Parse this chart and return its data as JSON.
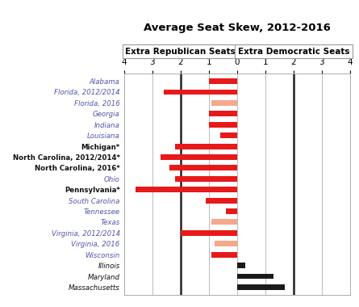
{
  "title": "Average Seat Skew, 2012-2016",
  "header_left": "Extra Republican Seats",
  "header_right": "Extra Democratic Seats",
  "states": [
    "Alabama",
    "Florida, 2012/2014",
    "Florida, 2016",
    "Georgia",
    "Indiana",
    "Louisiana",
    "Michigan*",
    "North Carolina, 2012/2014*",
    "North Carolina, 2016*",
    "Ohio",
    "Pennsylvania*",
    "South Carolina",
    "Tennessee",
    "Texas",
    "Virginia, 2012/2014",
    "Virginia, 2016",
    "Wisconsin",
    "Illinois",
    "Maryland",
    "Massachusetts"
  ],
  "values": [
    -1.0,
    -2.6,
    -0.9,
    -1.0,
    -1.0,
    -0.6,
    -2.2,
    -2.7,
    -2.4,
    -2.2,
    -3.6,
    -1.1,
    -0.4,
    -0.9,
    -2.0,
    -0.8,
    -0.9,
    0.3,
    1.3,
    1.7
  ],
  "bold_states": [
    "Michigan*",
    "North Carolina, 2012/2014*",
    "North Carolina, 2016*",
    "Pennsylvania*"
  ],
  "colors": {
    "red_solid": "#e8191a",
    "red_light": "#f4a98a",
    "black_solid": "#1a1a1a"
  },
  "color_map": {
    "Alabama": "red_solid",
    "Florida, 2012/2014": "red_solid",
    "Florida, 2016": "red_light",
    "Georgia": "red_solid",
    "Indiana": "red_solid",
    "Louisiana": "red_solid",
    "Michigan*": "red_solid",
    "North Carolina, 2012/2014*": "red_solid",
    "North Carolina, 2016*": "red_solid",
    "Ohio": "red_solid",
    "Pennsylvania*": "red_solid",
    "South Carolina": "red_solid",
    "Tennessee": "red_solid",
    "Texas": "red_light",
    "Virginia, 2012/2014": "red_solid",
    "Virginia, 2016": "red_light",
    "Wisconsin": "red_solid",
    "Illinois": "black_solid",
    "Maryland": "black_solid",
    "Massachusetts": "black_solid"
  },
  "label_colors": {
    "Alabama": "#5555aa",
    "Florida, 2012/2014": "#5555aa",
    "Florida, 2016": "#5555aa",
    "Georgia": "#5555aa",
    "Indiana": "#5555aa",
    "Louisiana": "#5555aa",
    "Michigan*": "#111111",
    "North Carolina, 2012/2014*": "#111111",
    "North Carolina, 2016*": "#111111",
    "Ohio": "#5555aa",
    "Pennsylvania*": "#111111",
    "South Carolina": "#5555aa",
    "Tennessee": "#5555aa",
    "Texas": "#5555aa",
    "Virginia, 2012/2014": "#5555aa",
    "Virginia, 2016": "#5555aa",
    "Wisconsin": "#5555aa",
    "Illinois": "#111111",
    "Maryland": "#111111",
    "Massachusetts": "#111111"
  },
  "xlim": [
    -4,
    4
  ],
  "xticks": [
    -4,
    -3,
    -2,
    -1,
    0,
    1,
    2,
    3,
    4
  ],
  "xticklabels": [
    "4",
    "3",
    "2",
    "1",
    "0",
    "1",
    "2",
    "3",
    "4"
  ],
  "thick_vlines": [
    -2,
    2
  ],
  "thin_vlines": [
    -3,
    -1,
    0,
    1,
    3
  ]
}
